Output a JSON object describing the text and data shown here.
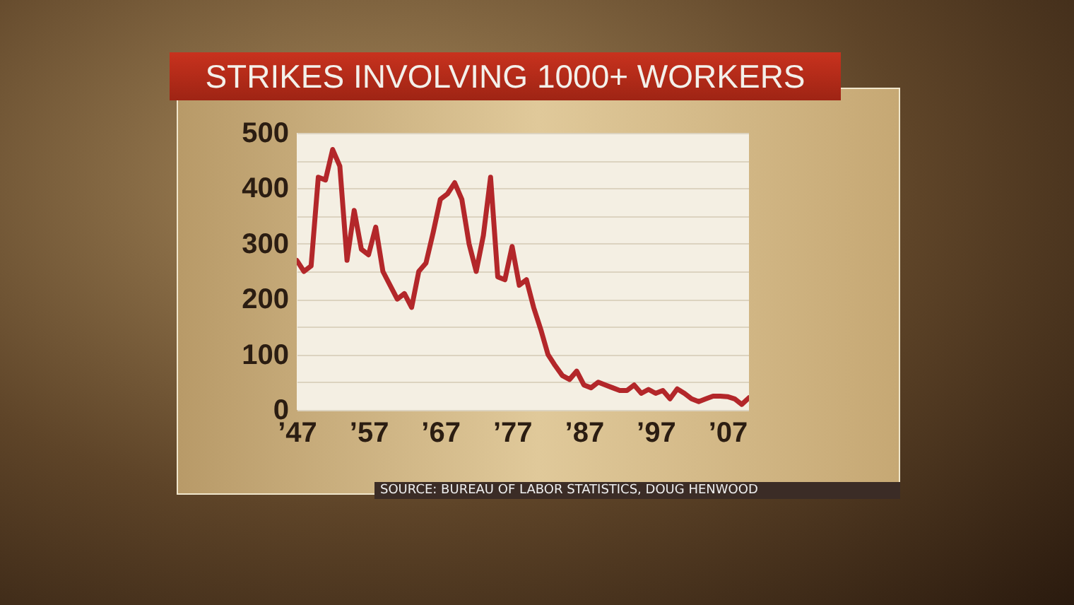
{
  "chart_data": {
    "type": "line",
    "title": "STRIKES INVOLVING 1000+ WORKERS",
    "annotations": [
      "SOURCE: BUREAU OF LABOR STATISTICS, DOUG HENWOOD"
    ],
    "x": [
      1947,
      1948,
      1949,
      1950,
      1951,
      1952,
      1953,
      1954,
      1955,
      1956,
      1957,
      1958,
      1959,
      1960,
      1961,
      1962,
      1963,
      1964,
      1965,
      1966,
      1967,
      1968,
      1969,
      1970,
      1971,
      1972,
      1973,
      1974,
      1975,
      1976,
      1977,
      1978,
      1979,
      1980,
      1981,
      1982,
      1983,
      1984,
      1985,
      1986,
      1987,
      1988,
      1989,
      1990,
      1991,
      1992,
      1993,
      1994,
      1995,
      1996,
      1997,
      1998,
      1999,
      2000,
      2001,
      2002,
      2003,
      2004,
      2005,
      2006,
      2007,
      2008,
      2009,
      2010
    ],
    "series": [
      {
        "color": "#b3272a",
        "values": [
          270,
          250,
          260,
          420,
          415,
          470,
          440,
          270,
          360,
          290,
          280,
          330,
          250,
          225,
          200,
          210,
          185,
          250,
          265,
          320,
          380,
          390,
          410,
          380,
          300,
          250,
          315,
          420,
          240,
          235,
          295,
          225,
          235,
          185,
          145,
          100,
          80,
          62,
          55,
          70,
          45,
          40,
          50,
          45,
          40,
          35,
          35,
          45,
          30,
          37,
          30,
          35,
          20,
          38,
          30,
          20,
          15,
          20,
          25,
          25,
          24,
          20,
          10,
          22
        ]
      }
    ],
    "xlim": [
      1947,
      2010
    ],
    "xticks": [
      {
        "value": 1947,
        "label": "’47"
      },
      {
        "value": 1957,
        "label": "’57"
      },
      {
        "value": 1967,
        "label": "’67"
      },
      {
        "value": 1977,
        "label": "’77"
      },
      {
        "value": 1987,
        "label": "’87"
      },
      {
        "value": 1997,
        "label": "’97"
      },
      {
        "value": 2007,
        "label": "’07"
      }
    ],
    "ylim": [
      0,
      500
    ],
    "yticks": [
      0,
      {
        "value": 50,
        "label": null
      },
      100,
      {
        "value": 150,
        "label": null
      },
      200,
      {
        "value": 250,
        "label": null
      },
      300,
      {
        "value": 350,
        "label": null
      },
      400,
      {
        "value": 450,
        "label": null
      },
      500
    ],
    "grid": "y",
    "marker": "none",
    "line_style": "solid"
  }
}
